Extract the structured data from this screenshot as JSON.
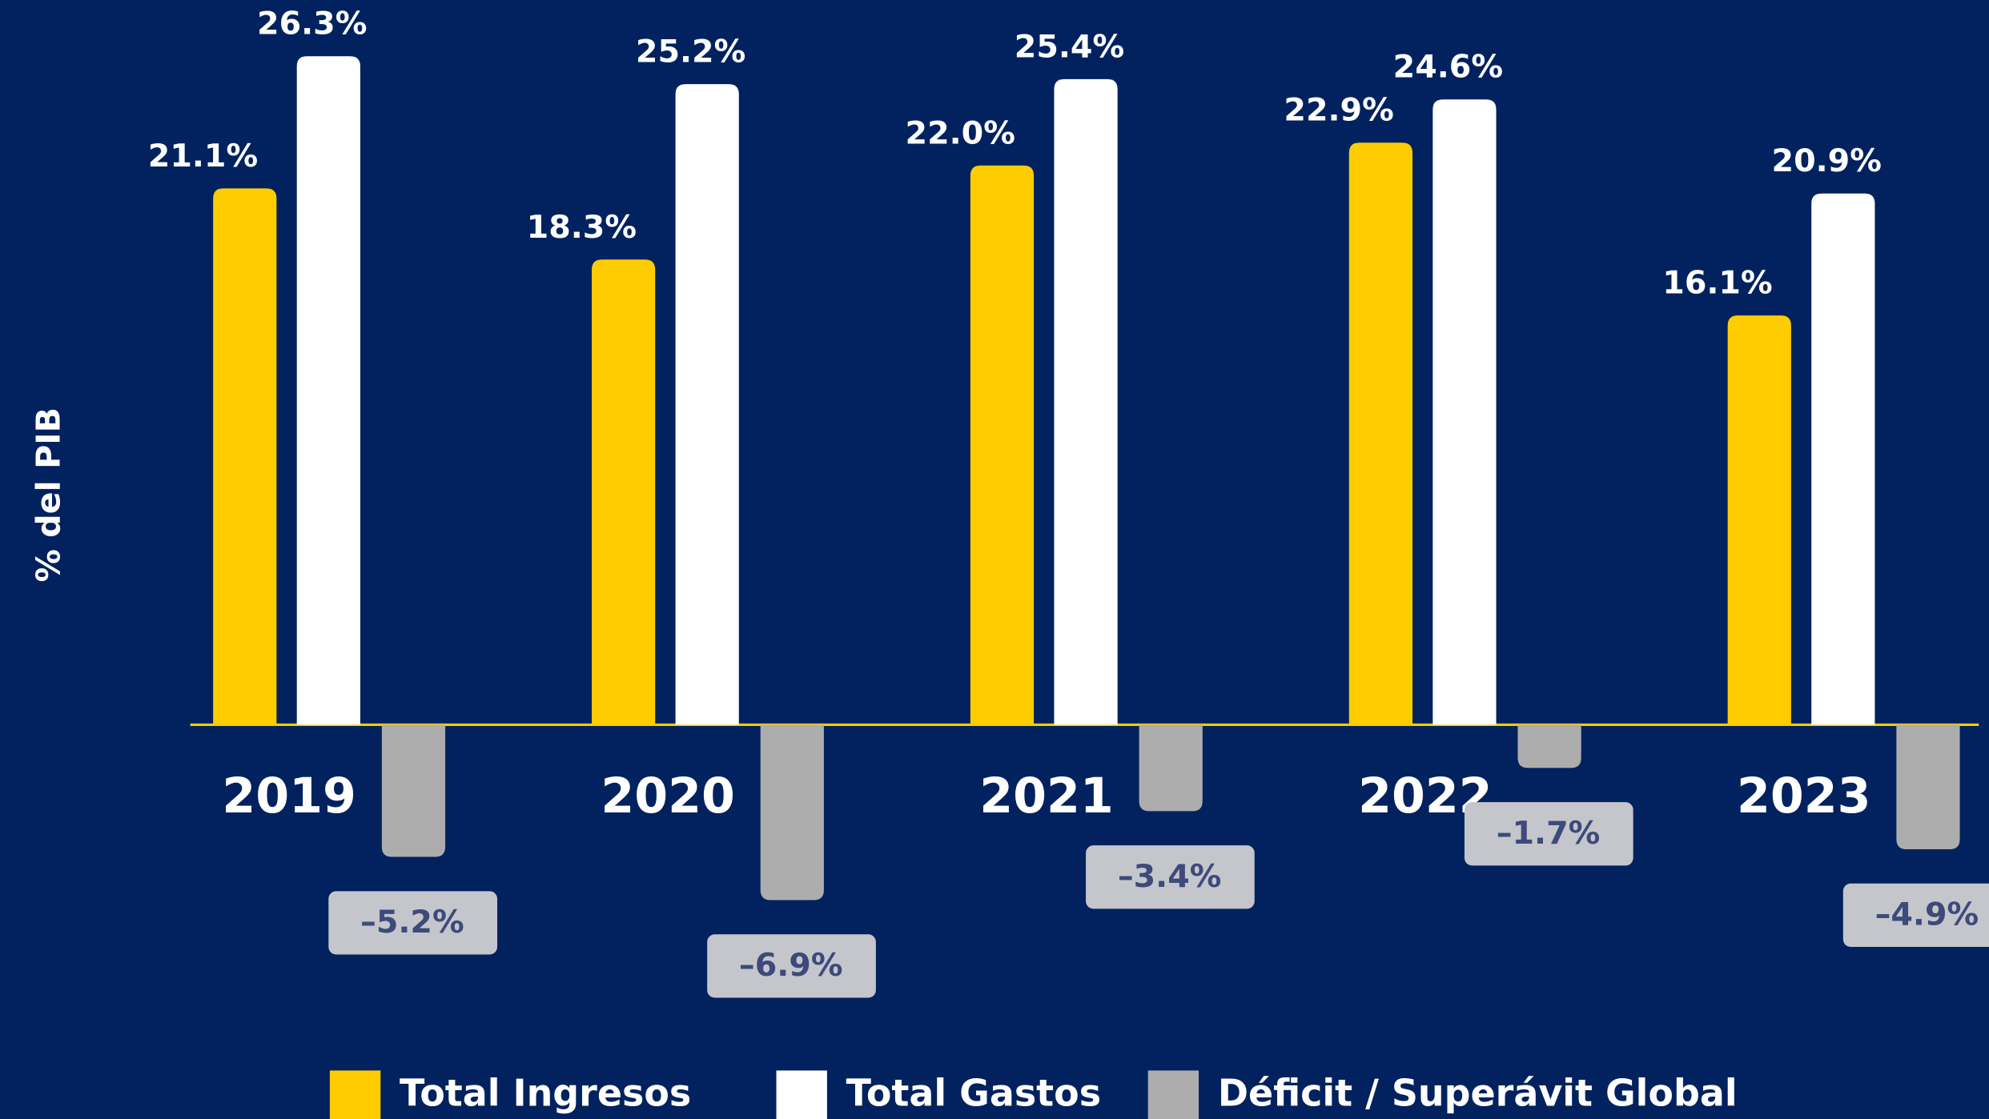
{
  "chart_data": {
    "type": "bar",
    "y_label": "% del PIB",
    "categories": [
      "2019",
      "2020",
      "2021",
      "2022",
      "2023"
    ],
    "series": [
      {
        "name": "Total Ingresos",
        "color": "#ffcc00",
        "values": [
          21.1,
          18.3,
          22.0,
          22.9,
          16.1
        ],
        "value_labels": [
          "21.1%",
          "18.3%",
          "22.0%",
          "22.9%",
          "16.1%"
        ]
      },
      {
        "name": "Total Gastos",
        "color": "#ffffff",
        "values": [
          26.3,
          25.2,
          25.4,
          24.6,
          20.9
        ],
        "value_labels": [
          "26.3%",
          "25.2%",
          "25.4%",
          "24.6%",
          "20.9%"
        ]
      },
      {
        "name": "Déficit / Superávit Global",
        "color": "#adadad",
        "values": [
          -5.2,
          -6.9,
          -3.4,
          -1.7,
          -4.9
        ],
        "value_labels": [
          "–5.2%",
          "–6.9%",
          "–3.4%",
          "–1.7%",
          "–4.9%"
        ]
      }
    ],
    "ylim": [
      -15.5,
      28.5
    ],
    "legend": "bottom"
  }
}
